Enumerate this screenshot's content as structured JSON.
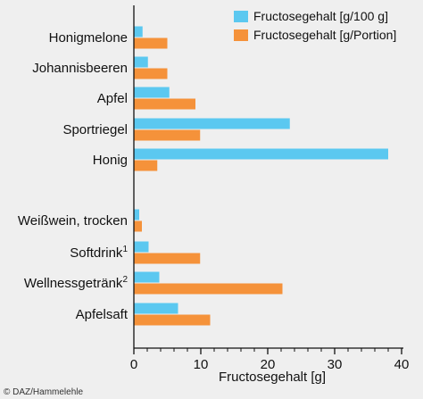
{
  "chart_data": {
    "type": "bar",
    "orientation": "horizontal",
    "categories": [
      {
        "label": "Honigmelone",
        "sup": ""
      },
      {
        "label": "Johannisbeeren",
        "sup": ""
      },
      {
        "label": "Apfel",
        "sup": ""
      },
      {
        "label": "Sportriegel",
        "sup": ""
      },
      {
        "label": "Honig",
        "sup": ""
      },
      {
        "label": "Weißwein, trocken",
        "sup": ""
      },
      {
        "label": "Softdrink",
        "sup": "1"
      },
      {
        "label": "Wellnessgetränk",
        "sup": "2"
      },
      {
        "label": "Apfelsaft",
        "sup": ""
      }
    ],
    "series": [
      {
        "name": "Fructosegehalt [g/100 g]",
        "color": "#5bc8f0",
        "values": [
          1.3,
          2.1,
          5.3,
          23.3,
          38.0,
          0.8,
          2.2,
          3.8,
          6.6
        ]
      },
      {
        "name": "Fructosegehalt [g/Portion]",
        "color": "#f5923a",
        "values": [
          5.0,
          5.0,
          9.2,
          9.9,
          3.5,
          1.2,
          9.9,
          22.2,
          11.4
        ]
      }
    ],
    "xlabel": "Fructosegehalt [g]",
    "xlim": [
      0,
      40
    ],
    "xticks": [
      "0",
      "10",
      "20",
      "30",
      "40"
    ],
    "legend_position": "top-right",
    "grid": false
  },
  "credit": "© DAZ/Hammelehle"
}
